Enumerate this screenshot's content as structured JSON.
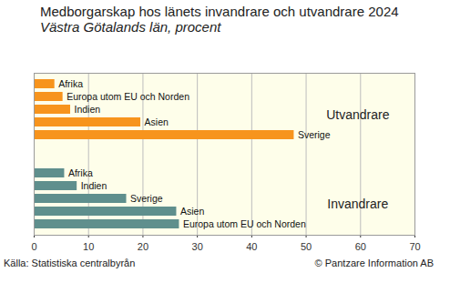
{
  "chart_data": {
    "type": "bar",
    "orientation": "horizontal",
    "title": "Medborgarskap hos länets invandrare och utvandrare 2024",
    "subtitle": "Västra Götalands län, procent",
    "source": "Källa: Statistiska centralbyrån",
    "copyright": "© Pantzare Information AB",
    "series": [
      {
        "name": "Utvandrare",
        "color": "#f7941d",
        "categories": [
          "Afrika",
          "Europa utom EU och Norden",
          "Indien",
          "Asien",
          "Sverige"
        ],
        "values": [
          3.8,
          5.3,
          6.7,
          19.6,
          47.8
        ]
      },
      {
        "name": "Invandrare",
        "color": "#5f8f8d",
        "categories": [
          "Afrika",
          "Indien",
          "Sverige",
          "Asien",
          "Europa utom EU och Norden"
        ],
        "values": [
          5.6,
          7.9,
          17.0,
          26.2,
          26.7
        ]
      }
    ],
    "xlim": [
      0,
      70
    ],
    "xticks": [
      0,
      10,
      20,
      30,
      40,
      50,
      60,
      70
    ],
    "grid": true,
    "data_labels": false
  }
}
